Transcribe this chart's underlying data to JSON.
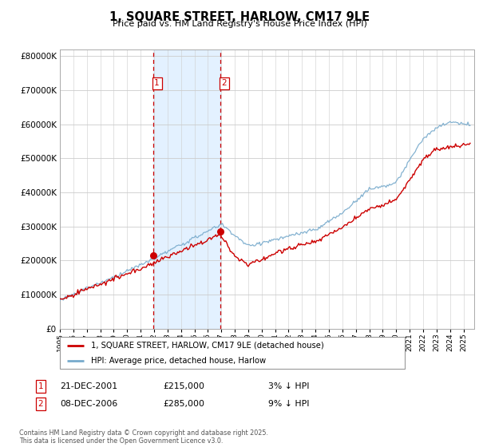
{
  "title": "1, SQUARE STREET, HARLOW, CM17 9LE",
  "subtitle": "Price paid vs. HM Land Registry's House Price Index (HPI)",
  "background_color": "#ffffff",
  "grid_color": "#cccccc",
  "red_color": "#cc0000",
  "blue_color": "#77aacc",
  "shade_color": "#ddeeff",
  "sale1_price": 215000,
  "sale2_price": 285000,
  "sale1_date": "21-DEC-2001",
  "sale2_date": "08-DEC-2006",
  "sale1_year": 2001.97,
  "sale2_year": 2006.93,
  "sale1_pct": "3% ↓ HPI",
  "sale2_pct": "9% ↓ HPI",
  "legend_label_red": "1, SQUARE STREET, HARLOW, CM17 9LE (detached house)",
  "legend_label_blue": "HPI: Average price, detached house, Harlow",
  "footer": "Contains HM Land Registry data © Crown copyright and database right 2025.\nThis data is licensed under the Open Government Licence v3.0.",
  "ylim_max": 820000,
  "yticks": [
    0,
    100000,
    200000,
    300000,
    400000,
    500000,
    600000,
    700000,
    800000
  ],
  "xlim_min": 1995,
  "xlim_max": 2025.8
}
